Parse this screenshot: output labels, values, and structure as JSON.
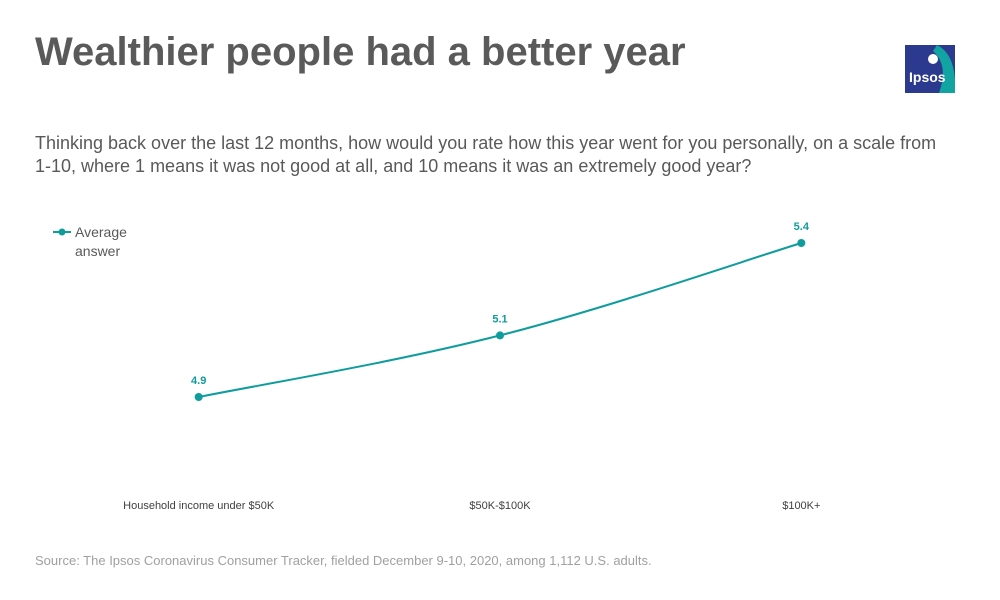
{
  "chart_data": {
    "type": "line",
    "title": "Wealthier people had a better year",
    "subtitle": "Thinking back over the last 12 months, how would you rate how this year went for you personally, on a scale from 1-10, where 1 means it was not good at all, and 10 means it was an extremely good year?",
    "categories": [
      "Household income under $50K",
      "$50K-$100K",
      "$100K+"
    ],
    "series": [
      {
        "name": "Average answer",
        "color": "#0f9c9c",
        "values": [
          4.9,
          5.1,
          5.4
        ]
      }
    ],
    "legend": "top-left",
    "source": "Source: The Ipsos Coronavirus Consumer Tracker, fielded December 9-10, 2020, among 1,112 U.S. adults.",
    "logo": "Ipsos"
  }
}
